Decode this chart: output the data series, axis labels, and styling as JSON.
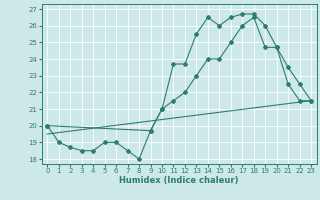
{
  "xlabel": "Humidex (Indice chaleur)",
  "xlim": [
    -0.5,
    23.5
  ],
  "ylim": [
    17.7,
    27.3
  ],
  "xticks": [
    0,
    1,
    2,
    3,
    4,
    5,
    6,
    7,
    8,
    9,
    10,
    11,
    12,
    13,
    14,
    15,
    16,
    17,
    18,
    19,
    20,
    21,
    22,
    23
  ],
  "yticks": [
    18,
    19,
    20,
    21,
    22,
    23,
    24,
    25,
    26,
    27
  ],
  "bg_color": "#cde8e8",
  "line_color": "#2d7d6e",
  "grid_color": "#ffffff",
  "line1_x": [
    0,
    1,
    2,
    3,
    4,
    5,
    6,
    7,
    8,
    9,
    10,
    11,
    12,
    13,
    14,
    15,
    16,
    17,
    18,
    19,
    20,
    21,
    22,
    23
  ],
  "line1_y": [
    20,
    19,
    18.7,
    18.5,
    18.5,
    19,
    19,
    18.5,
    18,
    19.7,
    21,
    23.7,
    23.7,
    25.5,
    26.5,
    26,
    26.5,
    26.7,
    26.7,
    26,
    24.7,
    22.5,
    21.5,
    21.5
  ],
  "line2_x": [
    0,
    9,
    10,
    11,
    12,
    13,
    14,
    15,
    16,
    17,
    18,
    19,
    20,
    21,
    22,
    23
  ],
  "line2_y": [
    20,
    19.7,
    21,
    21.5,
    22,
    23,
    24,
    24,
    25,
    26,
    26.5,
    24.7,
    24.7,
    23.5,
    22.5,
    21.5
  ],
  "line3_x": [
    0,
    23
  ],
  "line3_y": [
    19.5,
    21.5
  ]
}
